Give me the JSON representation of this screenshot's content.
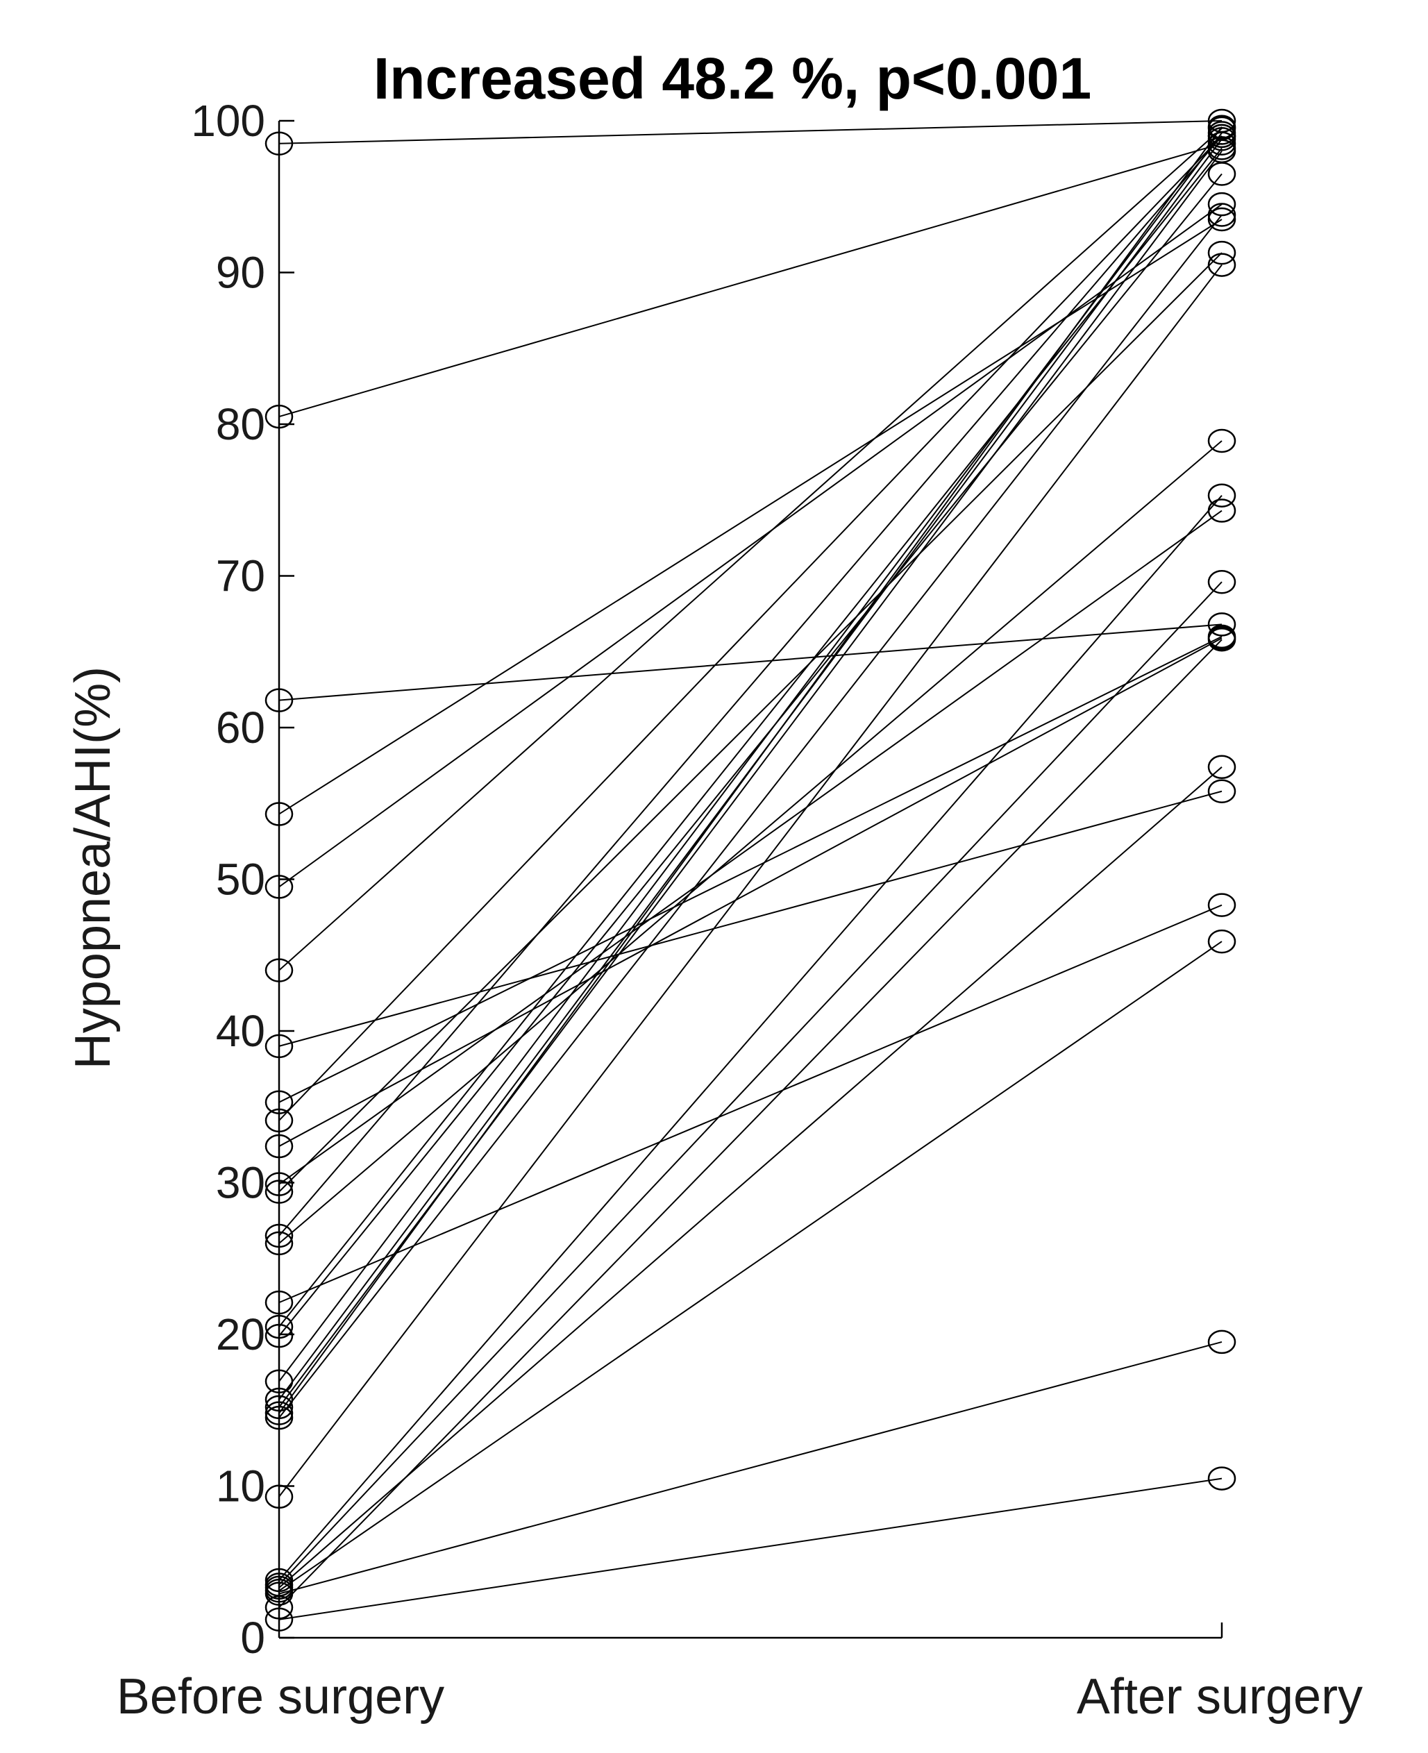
{
  "chart_data": {
    "type": "line",
    "title": "Increased  48.2 %, p<0.001",
    "ylabel": "Hypopnea/AHI(%)",
    "xlabel": "",
    "categories": [
      "Before surgery",
      "After surgery"
    ],
    "ylim": [
      0,
      100
    ],
    "yticks": [
      0,
      10,
      20,
      30,
      40,
      50,
      60,
      70,
      80,
      90,
      100
    ],
    "grid": false,
    "legend": "none",
    "line_color": "#000000",
    "marker": "open-circle",
    "pairs": [
      {
        "before": 98.5,
        "after": 100
      },
      {
        "before": 80.5,
        "after": 98.5
      },
      {
        "before": 61.8,
        "after": 66.8
      },
      {
        "before": 54.3,
        "after": 93.5
      },
      {
        "before": 49.5,
        "after": 94.5
      },
      {
        "before": 44.0,
        "after": 99.5
      },
      {
        "before": 39.0,
        "after": 55.8
      },
      {
        "before": 35.3,
        "after": 66.0
      },
      {
        "before": 34.1,
        "after": 99.0
      },
      {
        "before": 32.4,
        "after": 65.9
      },
      {
        "before": 29.9,
        "after": 74.3
      },
      {
        "before": 29.4,
        "after": 91.3
      },
      {
        "before": 26.5,
        "after": 99.0
      },
      {
        "before": 26.0,
        "after": 78.9
      },
      {
        "before": 22.1,
        "after": 48.3
      },
      {
        "before": 20.5,
        "after": 98.2
      },
      {
        "before": 19.9,
        "after": 96.5
      },
      {
        "before": 16.9,
        "after": 99.2
      },
      {
        "before": 15.7,
        "after": 98.8
      },
      {
        "before": 15.2,
        "after": 98.0
      },
      {
        "before": 14.8,
        "after": 99.6
      },
      {
        "before": 14.5,
        "after": 93.8
      },
      {
        "before": 9.3,
        "after": 90.5
      },
      {
        "before": 3.8,
        "after": 75.3
      },
      {
        "before": 3.5,
        "after": 69.6
      },
      {
        "before": 3.3,
        "after": 57.4
      },
      {
        "before": 3.1,
        "after": 45.9
      },
      {
        "before": 2.9,
        "after": 19.5
      },
      {
        "before": 2.0,
        "after": 65.8
      },
      {
        "before": 1.2,
        "after": 10.5
      }
    ]
  }
}
